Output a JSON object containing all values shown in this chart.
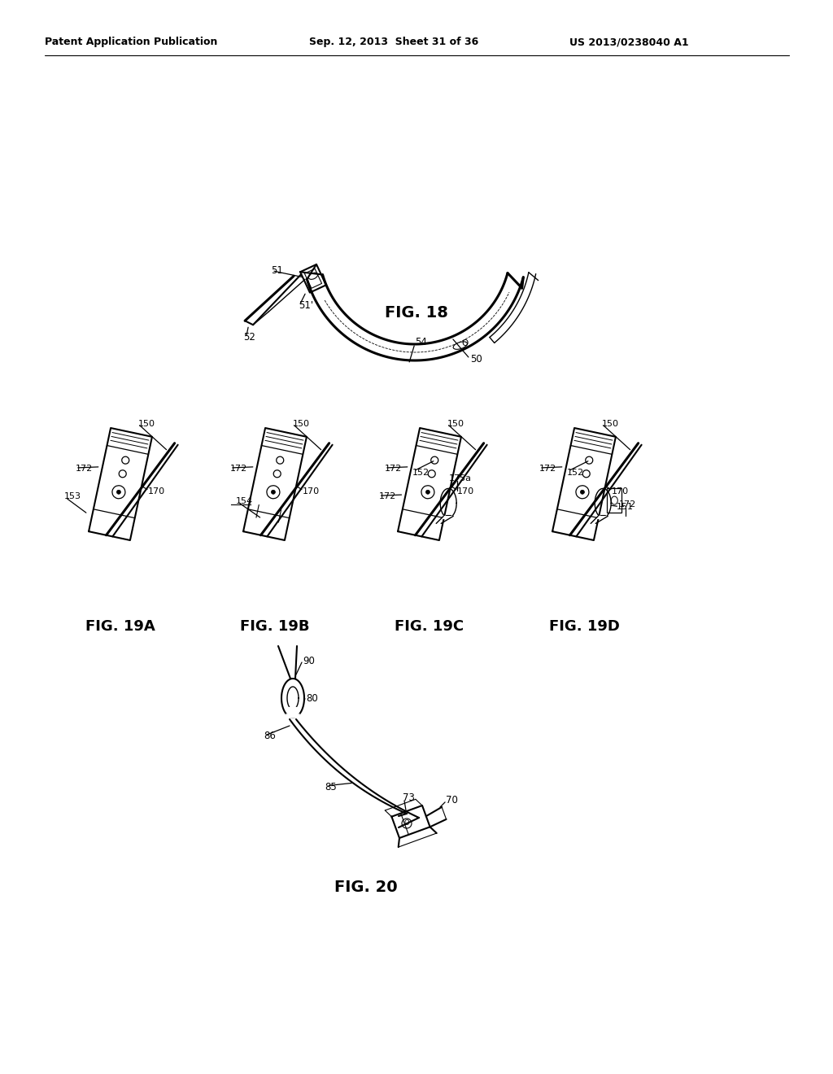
{
  "bg_color": "#ffffff",
  "header_left": "Patent Application Publication",
  "header_center": "Sep. 12, 2013  Sheet 31 of 36",
  "header_right": "US 2013/0238040 A1",
  "fig18_label": "FIG. 18",
  "fig19a_label": "FIG. 19A",
  "fig19b_label": "FIG. 19B",
  "fig19c_label": "FIG. 19C",
  "fig19d_label": "FIG. 19D",
  "fig20_label": "FIG. 20"
}
